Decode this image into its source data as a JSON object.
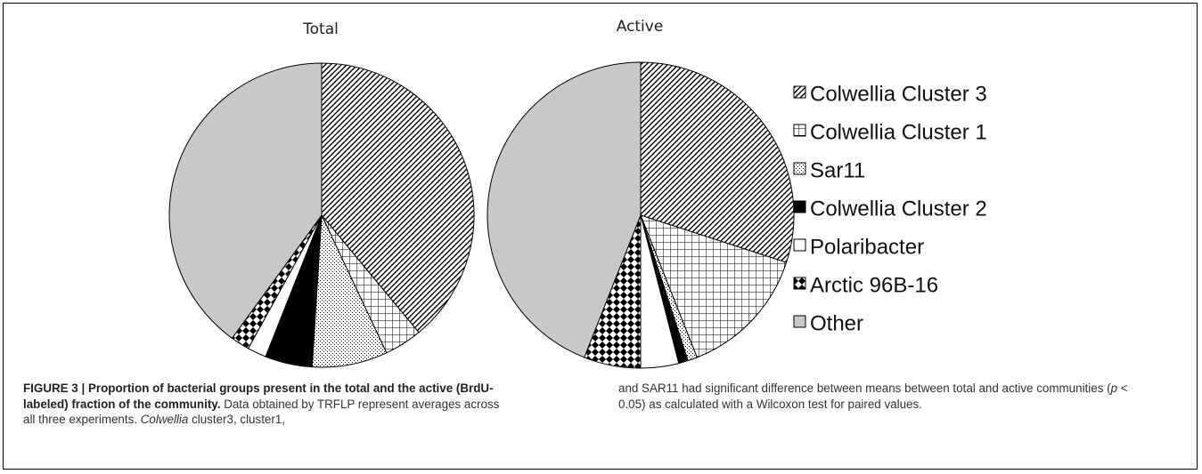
{
  "chart_data": {
    "type": "pie",
    "charts": [
      {
        "title": "Total",
        "values": [
          39,
          4,
          8,
          5,
          2,
          2,
          40
        ]
      },
      {
        "title": "Active",
        "values": [
          30,
          14,
          1,
          1,
          4,
          6,
          44
        ]
      }
    ],
    "categories": [
      "Colwellia Cluster 3",
      "Colwellia Cluster 1",
      "Sar11",
      "Colwellia Cluster 2",
      "Polaribacter",
      "Arctic 96B-16",
      "Other"
    ],
    "patterns": [
      "diagonal-hatch",
      "grid",
      "dots",
      "solid-black",
      "white",
      "diamond-check",
      "solid-gray"
    ],
    "legend_position": "right",
    "colors": {
      "other_fill": "#c8c8c8",
      "stroke": "#000000"
    }
  },
  "caption": {
    "label": "FIGURE 3 | Proportion of bacterial groups present in the total and the active (BrdU-labeled) fraction of the community.",
    "text_part1": " Data obtained by TRFLP represent averages across all three experiments. ",
    "italic_word": "Colwellia",
    "text_part2": " cluster3, cluster1, and SAR11 had significant difference between means between total and active communities (",
    "p_symbol": "p",
    "text_part3": " < 0.05) as calculated with a Wilcoxon test for paired values."
  }
}
